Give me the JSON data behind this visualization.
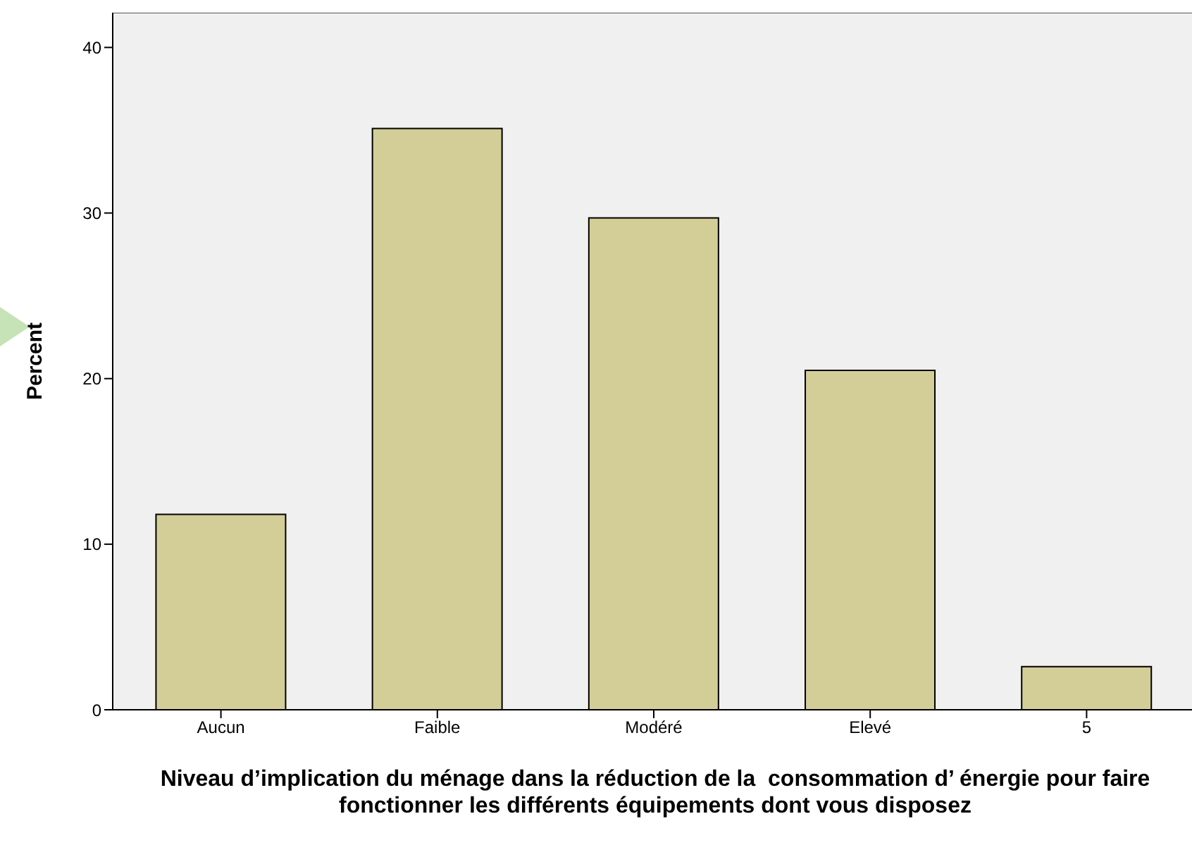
{
  "chart_data": {
    "type": "bar",
    "xlabel": "Niveau d’implication du ménage dans la réduction de la  consommation d’ énergie pour faire fonctionner les différents équipements dont vous disposez",
    "ylabel": "Percent",
    "categories": [
      "Aucun",
      "Faible",
      "Modéré",
      "Elevé",
      "5"
    ],
    "values": [
      11.8,
      35.1,
      29.7,
      20.5,
      2.6
    ],
    "color": "#d3ce97",
    "ylim": [
      0,
      42.1
    ],
    "yticks": [
      0,
      10,
      20,
      30,
      40
    ],
    "grid": false,
    "legend": false
  }
}
